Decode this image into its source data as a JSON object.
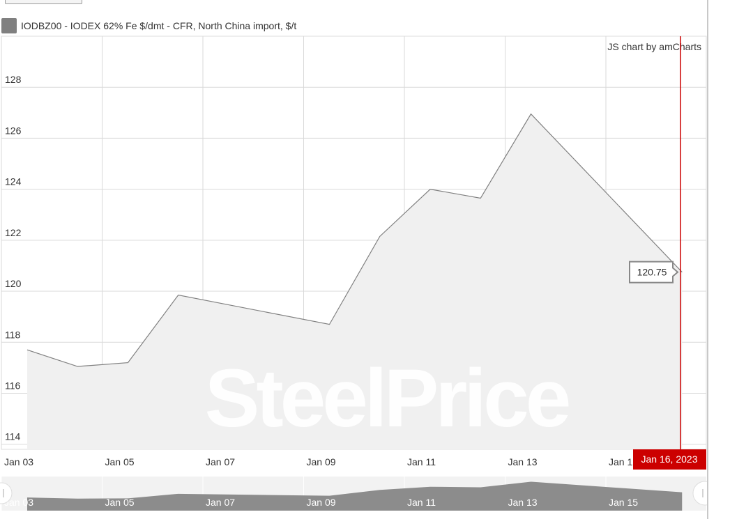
{
  "legend": {
    "label": "IODBZ00 - IODEX 62% Fe $/dmt - CFR, North China import, $/t",
    "swatch_color": "#808080"
  },
  "credit": "JS chart by amCharts",
  "watermark": "SteelPrice",
  "cursor": {
    "value_label": "120.75",
    "date_label": "Jan 16, 2023",
    "color": "#cc0000"
  },
  "chart_data": {
    "type": "area",
    "x": [
      "2023-01-03",
      "2023-01-04",
      "2023-01-05",
      "2023-01-06",
      "2023-01-09",
      "2023-01-10",
      "2023-01-11",
      "2023-01-12",
      "2023-01-13",
      "2023-01-16"
    ],
    "series": [
      {
        "values": [
          117.7,
          117.05,
          117.2,
          119.85,
          118.7,
          122.15,
          124.0,
          123.65,
          126.95,
          120.75
        ]
      }
    ],
    "ylim": [
      113.8,
      130.0
    ],
    "ytick_labels": [
      "114",
      "116",
      "118",
      "120",
      "122",
      "124",
      "126",
      "128"
    ],
    "xtick_labels": [
      "Jan 03",
      "Jan 05",
      "Jan 07",
      "Jan 09",
      "Jan 11",
      "Jan 13",
      "Jan 1"
    ],
    "navigator_tick_labels": [
      "Jan 03",
      "Jan 05",
      "Jan 07",
      "Jan 09",
      "Jan 11",
      "Jan 13",
      "Jan 15"
    ],
    "line_color": "#808080",
    "fill_color": "#f0f0f0",
    "grid": true
  }
}
